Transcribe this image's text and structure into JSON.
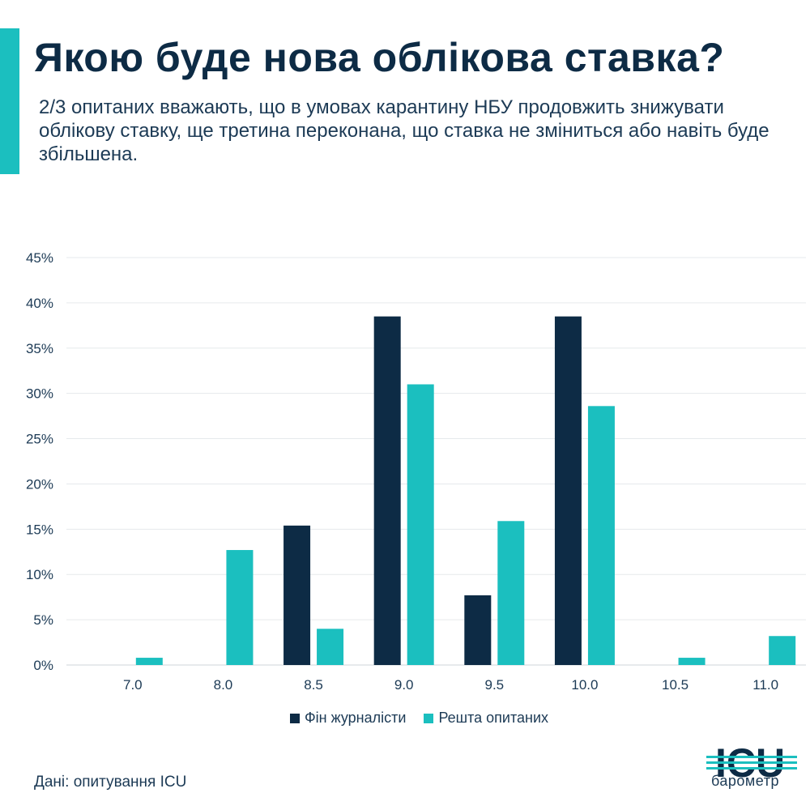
{
  "header": {
    "title": "Якою буде нова облікова ставка?",
    "subtitle": "2/3 опитаних вважають, що в умовах карантину НБУ продовжить знижувати облікову ставку, ще третина переконана, що ставка не зміниться або навіть буде збільшена."
  },
  "colors": {
    "accent": "#1bbfbf",
    "navy": "#0d2b45",
    "grid": "#e6e9ec"
  },
  "chart_data": {
    "type": "bar",
    "categories": [
      "7.0",
      "8.0",
      "8.5",
      "9.0",
      "9.5",
      "10.0",
      "10.5",
      "11.0"
    ],
    "series": [
      {
        "name": "Фін журналісти",
        "color": "#0d2b45",
        "values": [
          0,
          0,
          15.4,
          38.5,
          7.7,
          38.5,
          0,
          0
        ]
      },
      {
        "name": "Решта опитаних",
        "color": "#1bbfbf",
        "values": [
          0.8,
          12.7,
          4.0,
          31.0,
          15.9,
          28.6,
          0.8,
          3.2
        ]
      }
    ],
    "yticks": [
      "0%",
      "5%",
      "10%",
      "15%",
      "20%",
      "25%",
      "30%",
      "35%",
      "40%",
      "45%"
    ],
    "ylim": [
      0,
      45
    ],
    "ystep": 5,
    "legend_position": "bottom-center"
  },
  "footer": {
    "source": "Дані: опитування ICU",
    "logo_text": "ICU",
    "logo_caption": "барометр"
  }
}
